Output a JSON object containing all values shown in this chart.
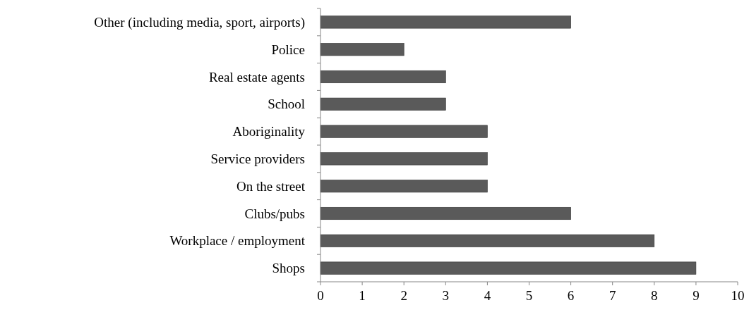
{
  "chart_data": {
    "type": "bar",
    "orientation": "horizontal",
    "categories": [
      "Other (including media, sport, airports)",
      "Police",
      "Real estate agents",
      "School",
      "Aboriginality",
      "Service providers",
      "On the street",
      "Clubs/pubs",
      "Workplace / employment",
      "Shops"
    ],
    "values": [
      6,
      2,
      3,
      3,
      4,
      4,
      4,
      6,
      8,
      9
    ],
    "color": "#5a5a5a",
    "xlim": [
      0,
      10
    ],
    "xticks": [
      0,
      1,
      2,
      3,
      4,
      5,
      6,
      7,
      8,
      9,
      10
    ],
    "grid": false
  }
}
